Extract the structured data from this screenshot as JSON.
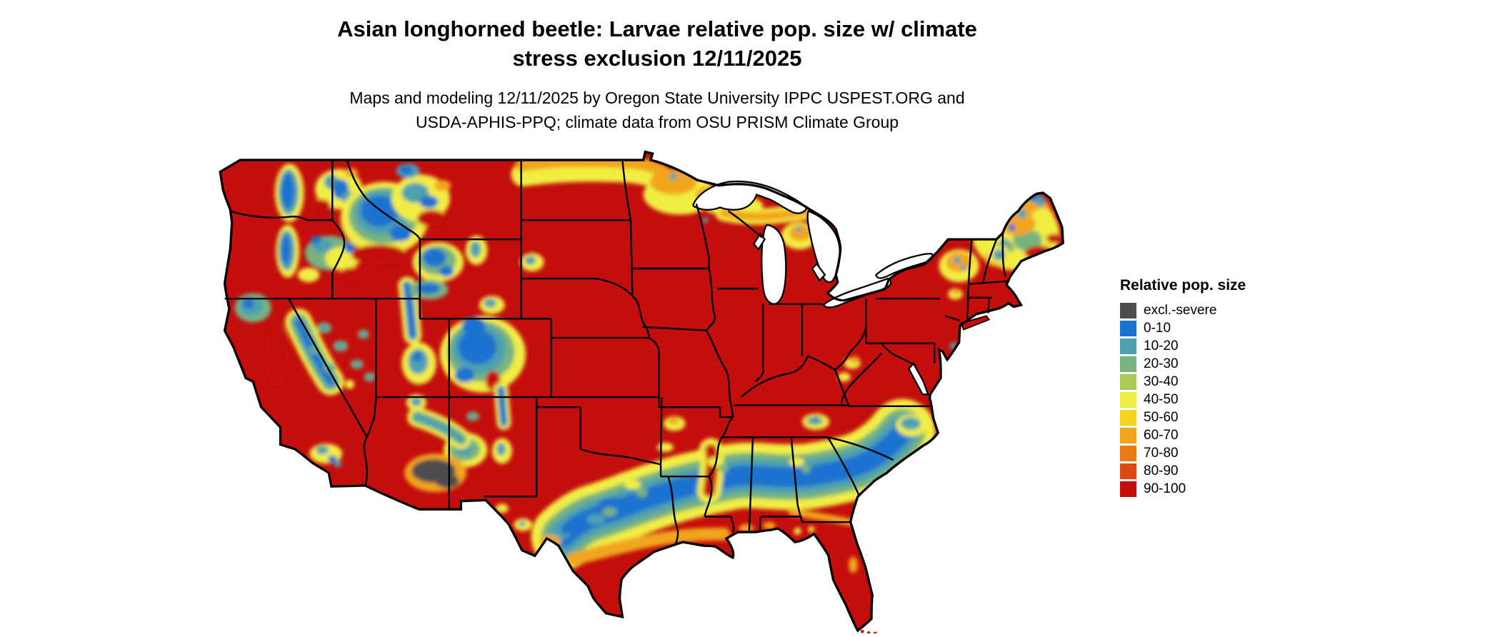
{
  "title": {
    "line1": "Asian longhorned beetle: Larvae relative pop. size w/ climate",
    "line2": "stress exclusion 12/11/2025"
  },
  "subtitle": {
    "line1": "Maps and modeling 12/11/2025 by Oregon State University IPPC USPEST.ORG and",
    "line2": "USDA-APHIS-PPQ; climate data from OSU PRISM Climate Group"
  },
  "map": {
    "region": "Continental United States",
    "layer": "Larvae relative population size raster with climate stress exclusion",
    "border_color": "#000000",
    "water_color": "#ffffff",
    "background": "#ffffff"
  },
  "legend": {
    "title": "Relative pop. size",
    "entries": [
      {
        "label": "excl.-severe",
        "color": "#4d4d4d"
      },
      {
        "label": "0-10",
        "color": "#1a72cf"
      },
      {
        "label": "10-20",
        "color": "#4da0b0"
      },
      {
        "label": "20-30",
        "color": "#77b37f"
      },
      {
        "label": "30-40",
        "color": "#a9ca55"
      },
      {
        "label": "40-50",
        "color": "#f1ee43"
      },
      {
        "label": "50-60",
        "color": "#f6d321"
      },
      {
        "label": "60-70",
        "color": "#f1a51e"
      },
      {
        "label": "70-80",
        "color": "#e87917"
      },
      {
        "label": "80-90",
        "color": "#dc4a10"
      },
      {
        "label": "90-100",
        "color": "#c40d0d"
      }
    ]
  }
}
